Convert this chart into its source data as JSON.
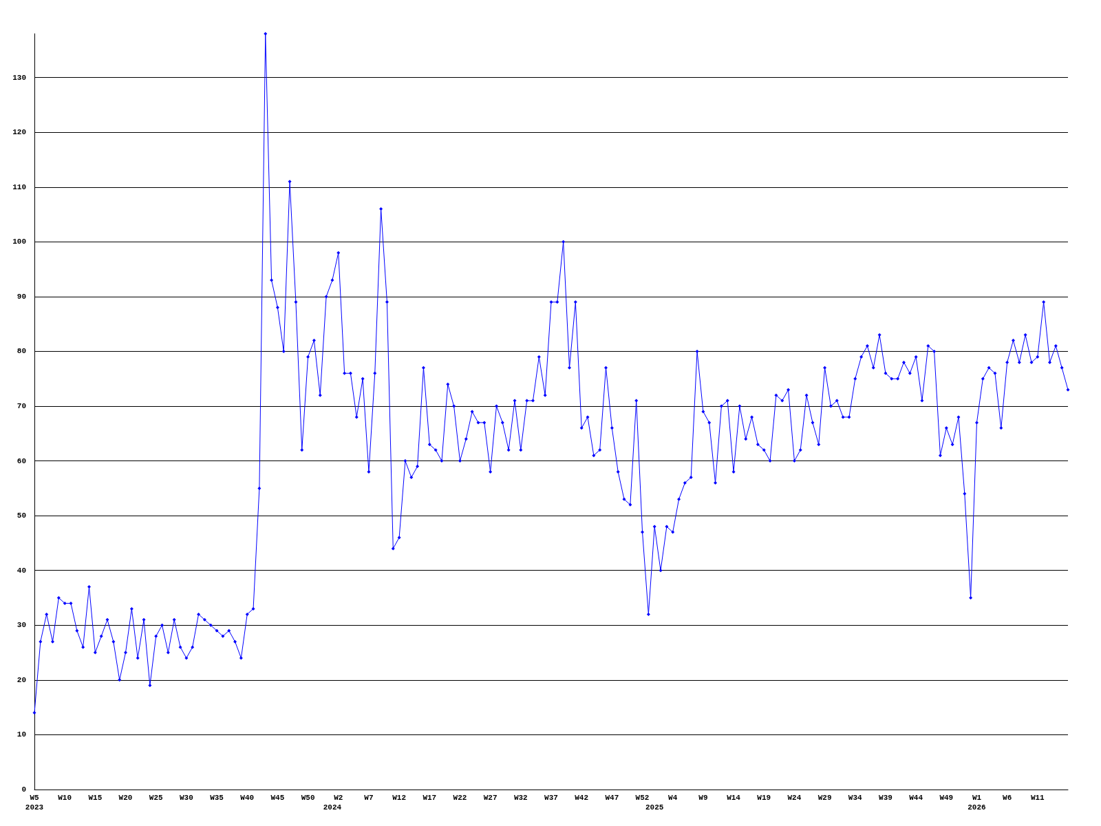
{
  "chart_data": {
    "type": "line",
    "categories": [
      "W5\n2023",
      null,
      null,
      null,
      null,
      "W10",
      null,
      null,
      null,
      null,
      "W15",
      null,
      null,
      null,
      null,
      "W20",
      null,
      null,
      null,
      null,
      "W25",
      null,
      null,
      null,
      null,
      "W30",
      null,
      null,
      null,
      null,
      "W35",
      null,
      null,
      null,
      null,
      "W40",
      null,
      null,
      null,
      null,
      "W45",
      null,
      null,
      null,
      null,
      "W50",
      null,
      null,
      null,
      "\n2024",
      "W2",
      null,
      null,
      null,
      null,
      "W7",
      null,
      null,
      null,
      null,
      "W12",
      null,
      null,
      null,
      null,
      "W17",
      null,
      null,
      null,
      null,
      "W22",
      null,
      null,
      null,
      null,
      "W27",
      null,
      null,
      null,
      null,
      "W32",
      null,
      null,
      null,
      null,
      "W37",
      null,
      null,
      null,
      null,
      "W42",
      null,
      null,
      null,
      null,
      "W47",
      null,
      null,
      null,
      null,
      "W52",
      null,
      "\n2025",
      null,
      null,
      "W4",
      null,
      null,
      null,
      null,
      "W9",
      null,
      null,
      null,
      null,
      "W14",
      null,
      null,
      null,
      null,
      "W19",
      null,
      null,
      null,
      null,
      "W24",
      null,
      null,
      null,
      null,
      "W29",
      null,
      null,
      null,
      null,
      "W34",
      null,
      null,
      null,
      null,
      "W39",
      null,
      null,
      null,
      null,
      "W44",
      null,
      null,
      null,
      null,
      "W49",
      null,
      null,
      null,
      null,
      "W1\n2026",
      null,
      null,
      null,
      null,
      "W6",
      null,
      null,
      null,
      null,
      "W11",
      null,
      null,
      null,
      null,
      null
    ],
    "series": [
      {
        "color": "#0000ff",
        "values": [
          14,
          27,
          32,
          27,
          35,
          34,
          34,
          29,
          26,
          37,
          25,
          28,
          31,
          27,
          20,
          25,
          33,
          24,
          31,
          19,
          28,
          30,
          25,
          31,
          26,
          24,
          26,
          32,
          31,
          30,
          29,
          28,
          29,
          27,
          24,
          32,
          33,
          55,
          138,
          93,
          88,
          80,
          111,
          89,
          62,
          79,
          82,
          72,
          90,
          93,
          98,
          76,
          76,
          68,
          75,
          58,
          76,
          106,
          89,
          44,
          46,
          60,
          57,
          59,
          77,
          63,
          62,
          60,
          74,
          70,
          60,
          64,
          69,
          67,
          67,
          58,
          70,
          67,
          62,
          71,
          62,
          71,
          71,
          79,
          72,
          89,
          89,
          100,
          77,
          89,
          66,
          68,
          61,
          62,
          77,
          66,
          58,
          53,
          52,
          71,
          47,
          32,
          48,
          40,
          48,
          47,
          53,
          56,
          57,
          80,
          69,
          67,
          56,
          70,
          71,
          58,
          70,
          64,
          68,
          63,
          62,
          60,
          72,
          71,
          73,
          60,
          62,
          72,
          67,
          63,
          77,
          70,
          71,
          68,
          68,
          75,
          79,
          81,
          77,
          83,
          76,
          75,
          75,
          78,
          76,
          79,
          71,
          81,
          80,
          61,
          66,
          63,
          68,
          54,
          35,
          67,
          75,
          77,
          76,
          66,
          78,
          82,
          78,
          83,
          78,
          79,
          89,
          78,
          81,
          77,
          73
        ]
      }
    ],
    "ylim": [
      0,
      138
    ],
    "yticks": [
      0,
      10,
      20,
      30,
      40,
      50,
      60,
      70,
      80,
      90,
      100,
      110,
      120,
      130
    ],
    "grid": "y",
    "marker": "diamond",
    "line_style": "solid"
  }
}
